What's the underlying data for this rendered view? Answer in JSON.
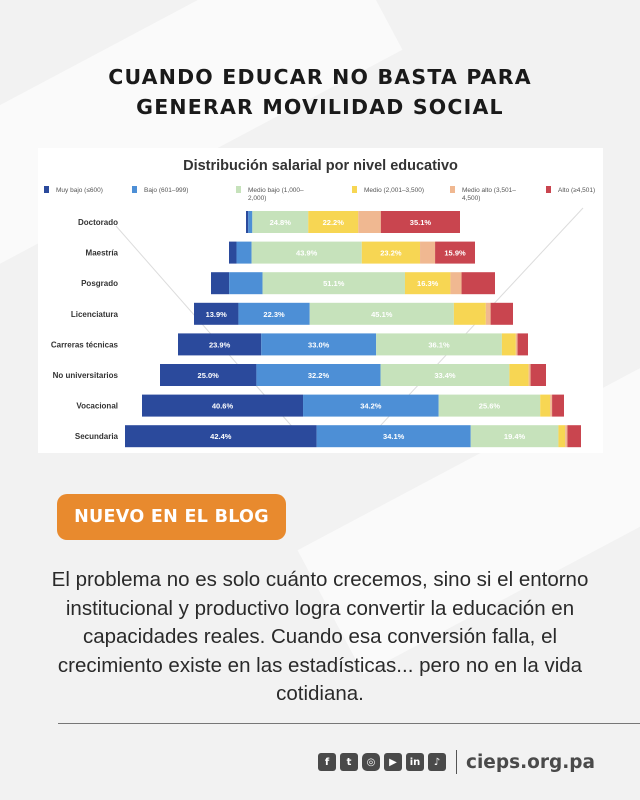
{
  "header": {
    "line1": "CUANDO EDUCAR NO BASTA PARA",
    "line2": "GENERAR MOVILIDAD SOCIAL"
  },
  "chart_data": {
    "type": "bar",
    "stacked": true,
    "orientation": "horizontal",
    "title": "Distribución salarial por nivel educativo",
    "legend_position": "top",
    "categories": [
      "Doctorado",
      "Maestría",
      "Posgrado",
      "Licenciatura",
      "Carreras técnicas",
      "No universitarios",
      "Vocacional",
      "Secundaria"
    ],
    "series": [
      {
        "name": "Muy bajo (≤600)",
        "color": "#2b4a9c",
        "values": [
          1.0,
          3.0,
          6.5,
          13.9,
          23.9,
          25.0,
          40.6,
          42.4
        ],
        "labels": [
          "",
          "",
          "",
          "13.9%",
          "23.9%",
          "25.0%",
          "40.6%",
          "42.4%"
        ]
      },
      {
        "name": "Bajo (601–999)",
        "color": "#4d8fd6",
        "values": [
          1.8,
          6.0,
          12.0,
          22.3,
          33.0,
          32.2,
          34.2,
          34.1
        ],
        "labels": [
          "",
          "",
          "",
          "22.3%",
          "33.0%",
          "32.2%",
          "34.2%",
          "34.1%"
        ]
      },
      {
        "name": "Medio bajo (1,000–\n2,000)",
        "color": "#c6e2bb",
        "values": [
          24.8,
          43.9,
          51.1,
          45.1,
          36.1,
          33.4,
          25.6,
          19.4
        ],
        "labels": [
          "24.8%",
          "43.9%",
          "51.1%",
          "45.1%",
          "36.1%",
          "33.4%",
          "25.6%",
          "19.4%"
        ]
      },
      {
        "name": "Medio (2,001–3,500)",
        "color": "#f7d653",
        "values": [
          22.2,
          23.2,
          16.3,
          10.0,
          4.0,
          5.0,
          2.5,
          1.5
        ],
        "labels": [
          "22.2%",
          "23.2%",
          "16.3%",
          "",
          "",
          "",
          "",
          ""
        ]
      },
      {
        "name": "Medio alto (3,501–\n4,500)",
        "color": "#f0b891",
        "values": [
          10.0,
          6.0,
          4.0,
          1.5,
          0.5,
          0.5,
          0.5,
          0.5
        ],
        "labels": [
          "",
          "",
          "",
          "",
          "",
          "",
          "",
          ""
        ]
      },
      {
        "name": "Alto (≥4,501)",
        "color": "#c9454f",
        "values": [
          35.1,
          15.9,
          12.0,
          7.0,
          3.0,
          4.0,
          3.0,
          3.0
        ],
        "labels": [
          "35.1%",
          "15.9%",
          "",
          "",
          "",
          "",
          "",
          ""
        ]
      }
    ]
  },
  "blog_badge": "NUEVO EN EL BLOG",
  "body_text": "El problema no es solo cuánto crecemos, sino si el entorno institucional y productivo logra convertir la educación en capacidades reales. Cuando esa conversión falla, el crecimiento existe en las estadísticas... pero no en la vida cotidiana.",
  "footer": {
    "social_icons": [
      "facebook-icon",
      "twitter-icon",
      "instagram-icon",
      "youtube-icon",
      "linkedin-icon",
      "tiktok-icon"
    ],
    "site": "cieps.org.pa"
  }
}
